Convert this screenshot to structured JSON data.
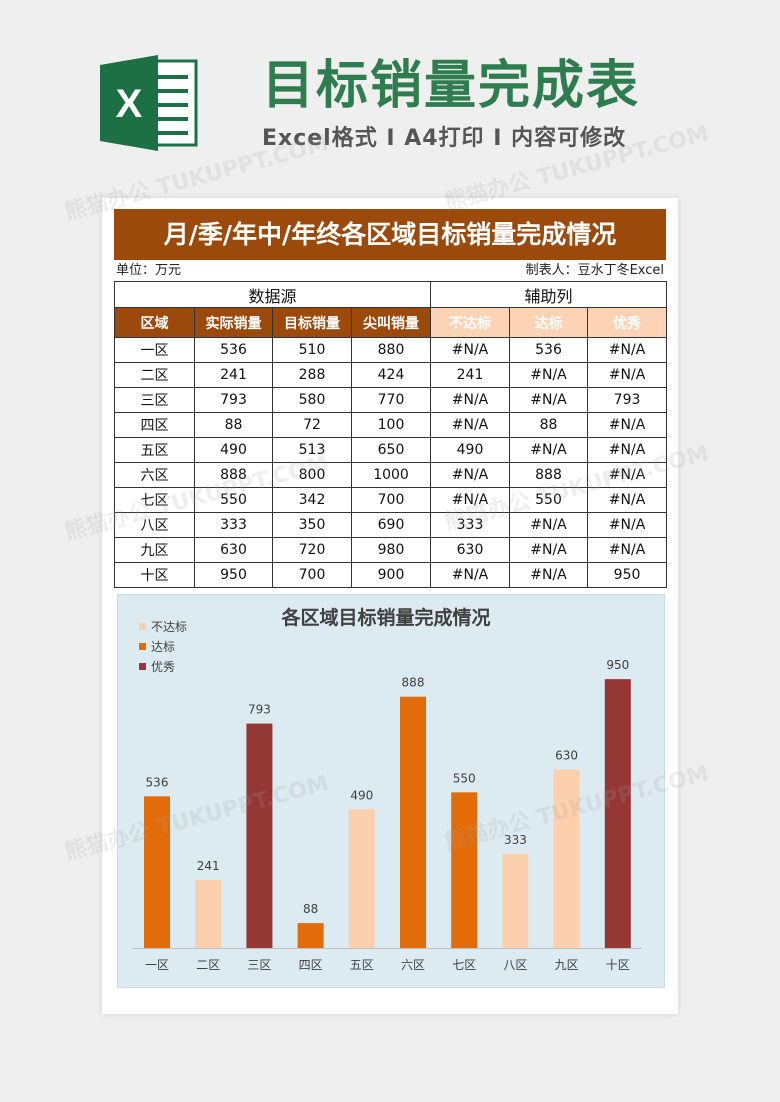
{
  "header": {
    "title": "目标销量完成表",
    "subtitle": "Excel格式 I A4打印 I 内容可修改",
    "logo_letter": "X"
  },
  "sheet": {
    "title": "月/季/年中/年终各区域目标销量完成情况",
    "unit": "单位：万元",
    "author": "制表人：豆水丁冬Excel",
    "group_source": "数据源",
    "group_helper": "辅助列",
    "columns": [
      "区域",
      "实际销量",
      "目标销量",
      "尖叫销量",
      "不达标",
      "达标",
      "优秀"
    ],
    "rows": [
      [
        "一区",
        "536",
        "510",
        "880",
        "#N/A",
        "536",
        "#N/A"
      ],
      [
        "二区",
        "241",
        "288",
        "424",
        "241",
        "#N/A",
        "#N/A"
      ],
      [
        "三区",
        "793",
        "580",
        "770",
        "#N/A",
        "#N/A",
        "793"
      ],
      [
        "四区",
        "88",
        "72",
        "100",
        "#N/A",
        "88",
        "#N/A"
      ],
      [
        "五区",
        "490",
        "513",
        "650",
        "490",
        "#N/A",
        "#N/A"
      ],
      [
        "六区",
        "888",
        "800",
        "1000",
        "#N/A",
        "888",
        "#N/A"
      ],
      [
        "七区",
        "550",
        "342",
        "700",
        "#N/A",
        "550",
        "#N/A"
      ],
      [
        "八区",
        "333",
        "350",
        "690",
        "333",
        "#N/A",
        "#N/A"
      ],
      [
        "九区",
        "630",
        "720",
        "980",
        "630",
        "#N/A",
        "#N/A"
      ],
      [
        "十区",
        "950",
        "700",
        "900",
        "#N/A",
        "#N/A",
        "950"
      ]
    ]
  },
  "colors": {
    "title_green": "#2e7d4f",
    "header_brown": "#9c4a0b",
    "helper_peach": "#fcd3b4",
    "bar_below": "#fdd0ad",
    "bar_meet": "#e36c0a",
    "bar_excellent": "#953735",
    "chart_bg": "#dbebf1"
  },
  "chart_data": {
    "type": "bar",
    "title": "各区域目标销量完成情况",
    "categories": [
      "一区",
      "二区",
      "三区",
      "四区",
      "五区",
      "六区",
      "七区",
      "八区",
      "九区",
      "十区"
    ],
    "values": [
      536,
      241,
      793,
      88,
      490,
      888,
      550,
      333,
      630,
      950
    ],
    "status": [
      "达标",
      "不达标",
      "优秀",
      "达标",
      "不达标",
      "达标",
      "达标",
      "不达标",
      "不达标",
      "优秀"
    ],
    "series": [
      {
        "name": "不达标",
        "color": "#fdd0ad"
      },
      {
        "name": "达标",
        "color": "#e36c0a"
      },
      {
        "name": "优秀",
        "color": "#953735"
      }
    ],
    "ylim": [
      0,
      1000
    ],
    "grid": false,
    "legend": "top-left"
  }
}
